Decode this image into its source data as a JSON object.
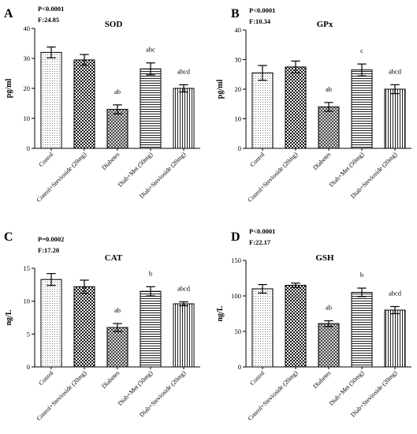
{
  "chart_data": [
    {
      "type": "bar",
      "panel": "A",
      "title": "SOD",
      "stats": [
        "P<0.0001",
        "F:24.85"
      ],
      "ylabel": "pg/ml",
      "ylim": [
        0,
        40
      ],
      "yticks": [
        "0",
        "10",
        "20",
        "30",
        "40"
      ],
      "categories": [
        "Conrol",
        "Conrol+Stevioside (20mg)",
        "Diabetes",
        "Diab+Met (50mg)",
        "Diab+Stevioside (20mg)"
      ],
      "values": [
        32,
        29.5,
        13,
        26.5,
        20
      ],
      "errors": [
        1.8,
        1.8,
        1.5,
        2.0,
        1.2
      ],
      "annotations": [
        "",
        "",
        "ab",
        "abc",
        "abcd"
      ],
      "patterns": [
        "dots",
        "checker",
        "hatch",
        "hlines",
        "vlines"
      ]
    },
    {
      "type": "bar",
      "panel": "B",
      "title": "GPx",
      "stats": [
        "P<0.0001",
        "F:10.34"
      ],
      "ylabel": "pg/ml",
      "ylim": [
        0,
        40
      ],
      "yticks": [
        "0",
        "10",
        "20",
        "30",
        "40"
      ],
      "categories": [
        "Conrol",
        "Conrol+Stevioside (20mg)",
        "Diabetes",
        "Diab+Met (50mg)",
        "Diab+Stevioside (20mg)"
      ],
      "values": [
        25.5,
        27.5,
        14,
        26.5,
        20
      ],
      "errors": [
        2.5,
        2.0,
        1.5,
        2.0,
        1.5
      ],
      "annotations": [
        "",
        "",
        "ab",
        "c",
        "abcd"
      ],
      "patterns": [
        "dots",
        "checker",
        "hatch",
        "hlines",
        "vlines"
      ]
    },
    {
      "type": "bar",
      "panel": "C",
      "title": "CAT",
      "stats": [
        "P=0.0002",
        "F:17.20"
      ],
      "ylabel": "ng/L",
      "ylim": [
        0,
        15
      ],
      "yticks": [
        "0",
        "5",
        "10",
        "15"
      ],
      "categories": [
        "Conrol",
        "Conrol+Stevioside (20mg)",
        "Diabetes",
        "Diab+Met (50mg)",
        "Diab+Stevioside (20mg)"
      ],
      "values": [
        13.3,
        12.2,
        6.0,
        11.5,
        9.6
      ],
      "errors": [
        0.9,
        1.0,
        0.6,
        0.7,
        0.3
      ],
      "annotations": [
        "",
        "",
        "ab",
        "b",
        "abcd"
      ],
      "patterns": [
        "dots",
        "checker",
        "hatch",
        "hlines",
        "vlines"
      ]
    },
    {
      "type": "bar",
      "panel": "D",
      "title": "GSH",
      "stats": [
        "P<0.0001",
        "F:22.17"
      ],
      "ylabel": "ng/L",
      "ylim": [
        0,
        150
      ],
      "yticks": [
        "0",
        "50",
        "100",
        "150"
      ],
      "categories": [
        "Conrol",
        "Conrol+Stevioside (20mg)",
        "Diabetes",
        "Diab+Met (50mg)",
        "Diab+Stevioside (20mg)"
      ],
      "values": [
        110,
        115,
        61,
        105,
        80
      ],
      "errors": [
        6,
        3,
        4,
        6,
        5
      ],
      "annotations": [
        "",
        "",
        "ab",
        "b",
        "abcd"
      ],
      "patterns": [
        "dots",
        "checker",
        "hatch",
        "hlines",
        "vlines"
      ]
    }
  ]
}
